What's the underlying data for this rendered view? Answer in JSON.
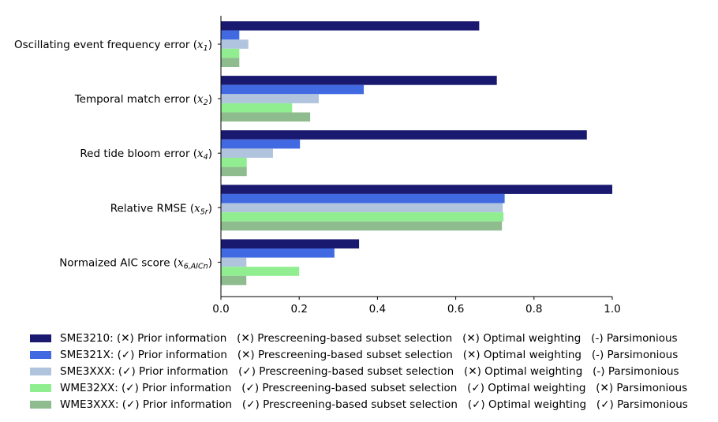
{
  "colors": {
    "SME3210": "#191970",
    "SME321X": "#4169e1",
    "SME3XXX": "#b0c4de",
    "WME32XX": "#90ee90",
    "WME3XXX": "#8fbc8f"
  },
  "chart_data": {
    "type": "bar",
    "orientation": "horizontal",
    "grid": false,
    "xlim": [
      0,
      1
    ],
    "xticks": [
      "0.0",
      "0.2",
      "0.4",
      "0.6",
      "0.8",
      "1.0"
    ],
    "categories": [
      {
        "text": "Oscillating event frequency error (",
        "var": "x",
        "sub": "1",
        "tail": ")"
      },
      {
        "text": "Temporal match error (",
        "var": "x",
        "sub": "2",
        "tail": ")"
      },
      {
        "text": "Red tide bloom error (",
        "var": "x",
        "sub": "4",
        "tail": ")"
      },
      {
        "text": "Relative RMSE (",
        "var": "x",
        "sub": "5r",
        "tail": ")"
      },
      {
        "text": "Normaized AIC score (",
        "var": "x",
        "sub": "6,AICn",
        "tail": ")"
      }
    ],
    "series": [
      {
        "key": "SME3210",
        "values": [
          0.66,
          0.705,
          0.935,
          1.0,
          0.353
        ]
      },
      {
        "key": "SME321X",
        "values": [
          0.047,
          0.365,
          0.202,
          0.725,
          0.29
        ]
      },
      {
        "key": "SME3XXX",
        "values": [
          0.07,
          0.25,
          0.133,
          0.72,
          0.065
        ]
      },
      {
        "key": "WME32XX",
        "values": [
          0.047,
          0.182,
          0.066,
          0.722,
          0.2
        ]
      },
      {
        "key": "WME3XXX",
        "values": [
          0.047,
          0.228,
          0.066,
          0.718,
          0.065
        ]
      }
    ],
    "legend_position": "bottom",
    "legend": [
      {
        "key": "SME3210",
        "label": "SME3210: (✕) Prior information   (✕) Prescreening-based subset selection   (✕) Optimal weighting   (-) Parsimonious"
      },
      {
        "key": "SME321X",
        "label": "SME321X: (✓) Prior information   (✕) Prescreening-based subset selection   (✕) Optimal weighting   (-) Parsimonious"
      },
      {
        "key": "SME3XXX",
        "label": "SME3XXX: (✓) Prior information   (✓) Prescreening-based subset selection   (✕) Optimal weighting   (-) Parsimonious"
      },
      {
        "key": "WME32XX",
        "label": "WME32XX: (✓) Prior information   (✓) Prescreening-based subset selection   (✓) Optimal weighting   (✕) Parsimonious"
      },
      {
        "key": "WME3XXX",
        "label": "WME3XXX: (✓) Prior information   (✓) Prescreening-based subset selection   (✓) Optimal weighting   (✓) Parsimonious"
      }
    ]
  }
}
